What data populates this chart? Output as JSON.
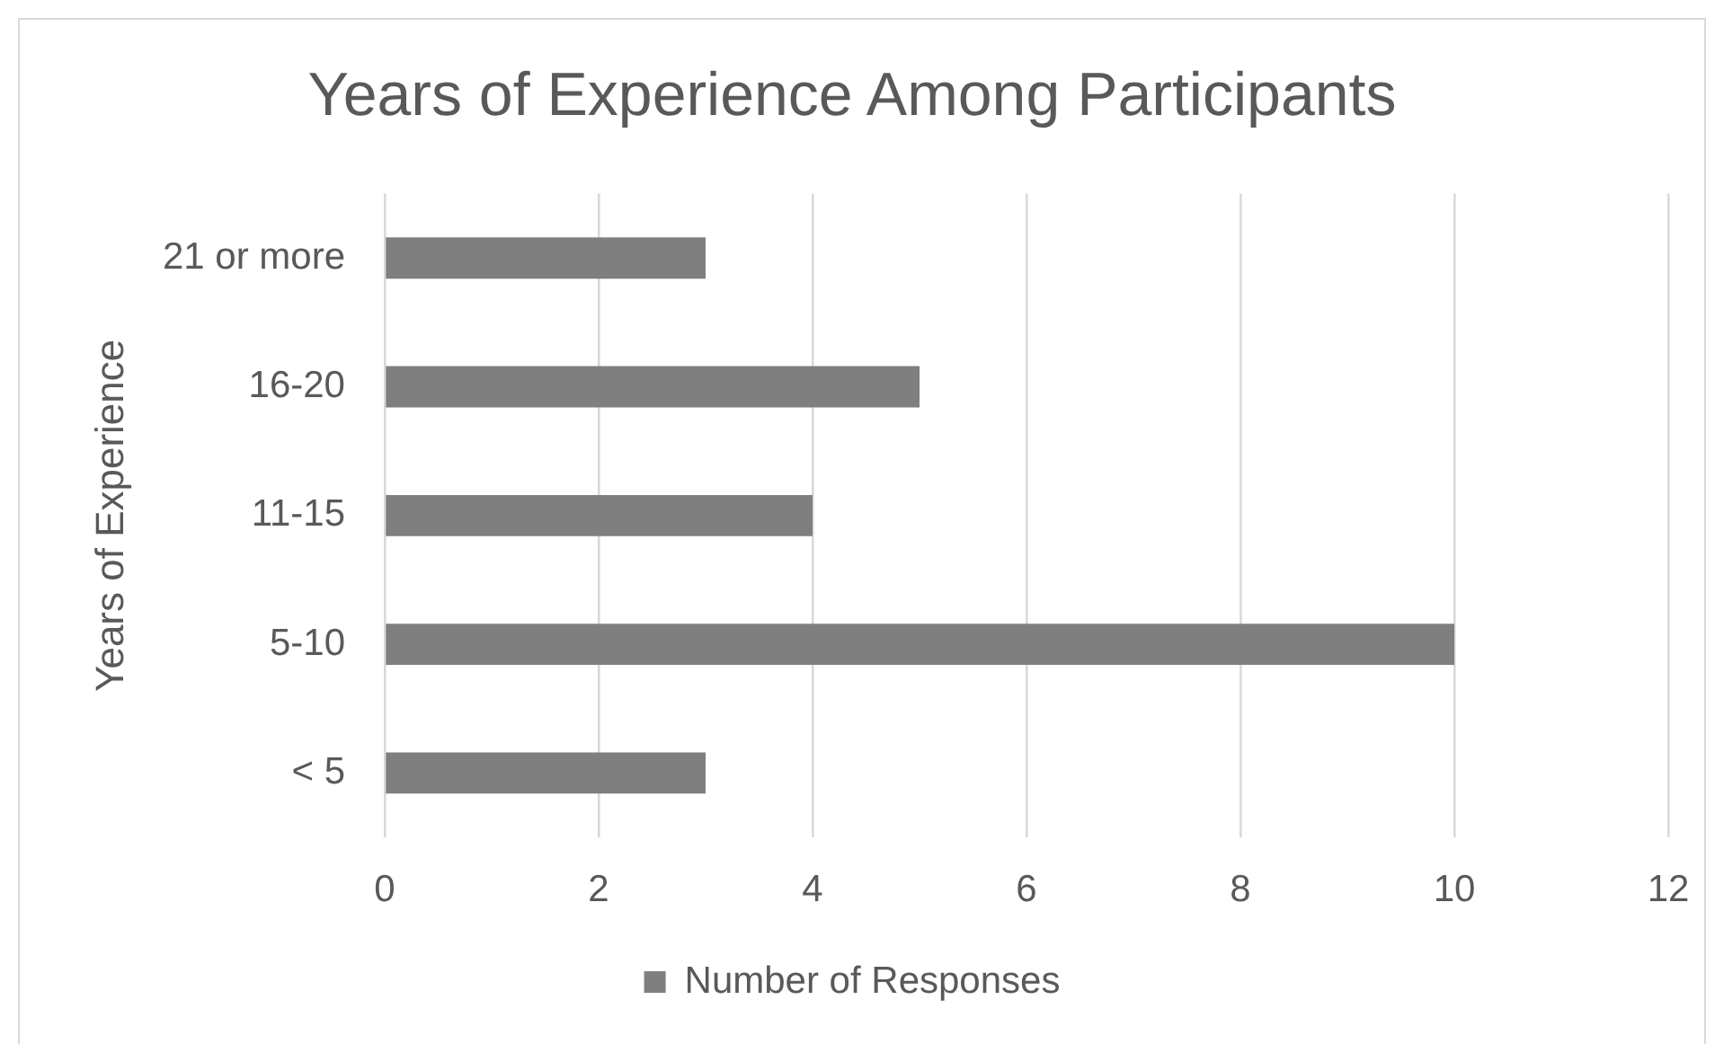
{
  "chart_data": {
    "type": "bar",
    "orientation": "horizontal",
    "title": "Years of Experience Among Participants",
    "ylabel": "Years of Experience",
    "categories": [
      "21 or more",
      "16-20",
      "11-15",
      "5-10",
      "< 5"
    ],
    "series": [
      {
        "name": "Number of Responses",
        "color": "#7f7f7f",
        "values": [
          3,
          5,
          4,
          10,
          3
        ]
      }
    ],
    "xlim": [
      0,
      12
    ],
    "xticks": [
      0,
      2,
      4,
      6,
      8,
      10,
      12
    ],
    "grid": "x",
    "legend": "bottom"
  }
}
